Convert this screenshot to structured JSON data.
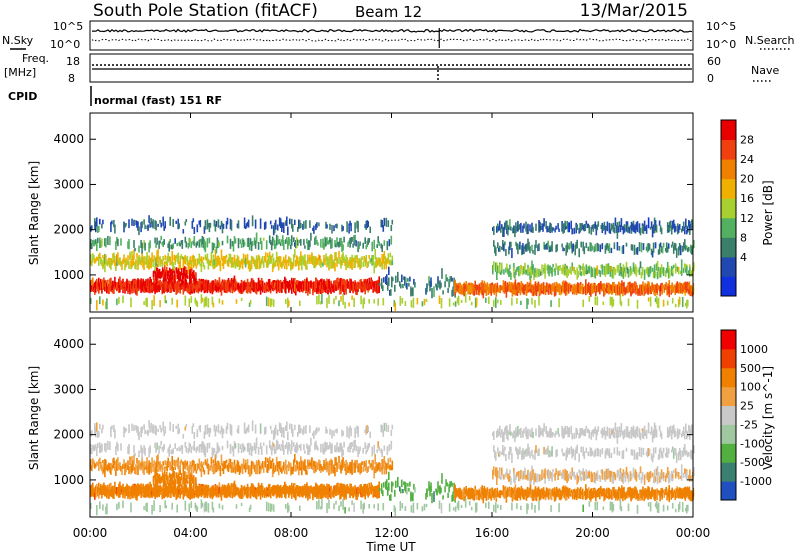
{
  "header": {
    "station": "South Pole Station (fitACF)",
    "beam": "Beam 12",
    "date": "13/Mar/2015"
  },
  "status_panels": {
    "nsky_label": "N.Sky",
    "nsearch_label": "N.Search",
    "log_hi": "10^5",
    "log_lo": "10^0",
    "freq_label": "Freq.",
    "freq_unit": "[MHz]",
    "freq_ticks": [
      "18",
      "8"
    ],
    "nave_ticks": [
      "60",
      "0"
    ],
    "nave_label": "Nave",
    "cpid_label": "CPID",
    "cpid_value": "normal (fast) 151 RF"
  },
  "colors": {
    "power": [
      "#1030e0",
      "#2048b0",
      "#3a7f6a",
      "#52b060",
      "#a8d030",
      "#f0b000",
      "#f08000",
      "#f04010",
      "#e80000"
    ],
    "velocity": [
      "#f00000",
      "#f04000",
      "#f08000",
      "#f0a040",
      "#c8c8c8",
      "#a0c8a0",
      "#52b040",
      "#3a8070",
      "#2050c0"
    ]
  },
  "chart_data": [
    {
      "type": "heatmap",
      "title": "Power",
      "ylabel": "Slant Range [km]",
      "xlabel": "",
      "x_ticks": [
        "00:00",
        "04:00",
        "08:00",
        "12:00",
        "16:00",
        "20:00",
        "00:00"
      ],
      "x_range_hours": [
        0,
        24
      ],
      "y_ticks": [
        1000,
        2000,
        3000,
        4000
      ],
      "ylim": [
        180,
        4580
      ],
      "colorbar_label": "Power [dB]",
      "colorbar_ticks": [
        "28",
        "24",
        "20",
        "16",
        "12",
        "8",
        "4"
      ],
      "value_range": [
        0,
        30
      ]
    },
    {
      "type": "heatmap",
      "title": "Velocity",
      "ylabel": "Slant Range [km]",
      "xlabel": "Time UT",
      "x_ticks": [
        "00:00",
        "04:00",
        "08:00",
        "12:00",
        "16:00",
        "20:00",
        "00:00"
      ],
      "x_range_hours": [
        0,
        24
      ],
      "y_ticks": [
        1000,
        2000,
        3000,
        4000
      ],
      "ylim": [
        180,
        4580
      ],
      "colorbar_label": "Velocity [m s^-1]",
      "colorbar_ticks": [
        "1000",
        "500",
        "100",
        "25",
        "-25",
        "-100",
        "-500",
        "-1000"
      ],
      "value_range": [
        -1000,
        1000
      ]
    }
  ]
}
